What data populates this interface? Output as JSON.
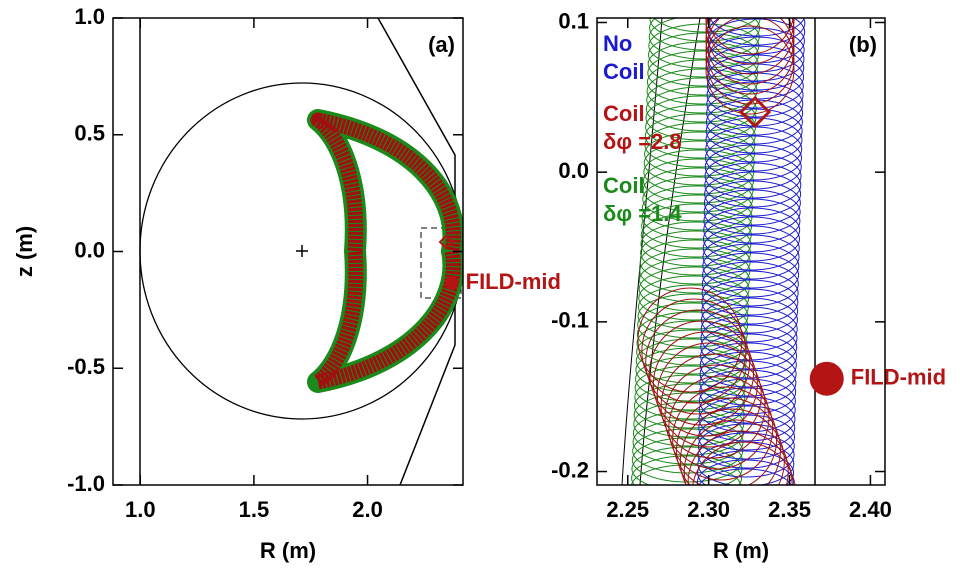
{
  "chart_data": [
    {
      "type": "scatter",
      "panel_label": "(a)",
      "xlabel": "R (m)",
      "ylabel": "z (m)",
      "xlim": [
        0.88,
        2.42
      ],
      "ylim": [
        -1.0,
        1.0
      ],
      "xticks": [
        {
          "value": 1,
          "label": "1.0"
        },
        {
          "value": 1.5,
          "label": "1.5"
        },
        {
          "value": 2,
          "label": "2.0"
        }
      ],
      "yticks": [
        {
          "value": 1,
          "label": "1.0"
        },
        {
          "value": 0.5,
          "label": "0.5"
        },
        {
          "value": 0,
          "label": "0.0"
        },
        {
          "value": -0.5,
          "label": "-0.5"
        },
        {
          "value": -1,
          "label": "-1.0"
        }
      ],
      "series": [
        {
          "name": "FILD-mid",
          "color": "#b51414",
          "x": [
            2.37
          ],
          "values": [
            -0.135
          ]
        }
      ]
    },
    {
      "type": "scatter",
      "panel_label": "(b)",
      "xlabel": "R (m)",
      "xlim": [
        2.231,
        2.409
      ],
      "ylim": [
        -0.209,
        0.103
      ],
      "xticks": [
        2.25,
        {
          "value": 2.3,
          "label": "2.30"
        },
        2.35,
        {
          "value": 2.4,
          "label": "2.40"
        }
      ],
      "yticks": [
        0.1,
        {
          "value": 0,
          "label": "0.0"
        },
        -0.1,
        -0.2
      ],
      "series": [
        {
          "name": "FILD-mid",
          "color": "#b51414",
          "x": [
            2.373
          ],
          "values": [
            -0.138
          ]
        }
      ],
      "notes": [
        {
          "lines": [
            "No",
            "Coil"
          ],
          "color": "#1a1ad0"
        },
        {
          "lines": [
            "Coil",
            "δφ =2.8"
          ],
          "color": "#b51414"
        },
        {
          "lines": [
            "Coil",
            "δφ =1.4"
          ],
          "color": "#1a8a1a"
        }
      ]
    }
  ]
}
